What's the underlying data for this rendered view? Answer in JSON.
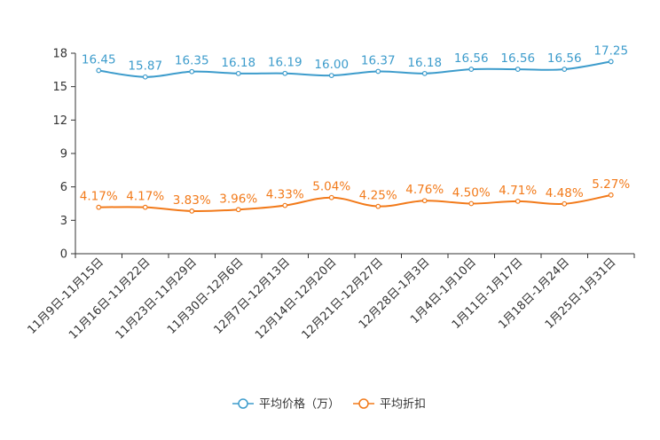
{
  "chart_data": {
    "type": "line",
    "categories": [
      "11月9日-11月15日",
      "11月16日-11月22日",
      "11月23日-11月29日",
      "11月30日-12月6日",
      "12月7日-12月13日",
      "12月14日-12月20日",
      "12月21日-12月27日",
      "12月28日-1月3日",
      "1月4日-1月10日",
      "1月11日-1月17日",
      "1月18日-1月24日",
      "1月25日-1月31日"
    ],
    "ylim": [
      0,
      18
    ],
    "yticks": [
      0,
      3,
      6,
      9,
      12,
      15,
      18
    ],
    "series": [
      {
        "name": "平均价格（万）",
        "color": "#3d9ccc",
        "values": [
          16.45,
          15.87,
          16.35,
          16.18,
          16.19,
          16.0,
          16.37,
          16.18,
          16.56,
          16.56,
          16.56,
          17.25
        ],
        "labels": [
          "16.45",
          "15.87",
          "16.35",
          "16.18",
          "16.19",
          "16.00",
          "16.37",
          "16.18",
          "16.56",
          "16.56",
          "16.56",
          "17.25"
        ]
      },
      {
        "name": "平均折扣",
        "color": "#f27a1a",
        "values": [
          4.17,
          4.17,
          3.83,
          3.96,
          4.33,
          5.04,
          4.25,
          4.76,
          4.5,
          4.71,
          4.48,
          5.27
        ],
        "labels": [
          "4.17%",
          "4.17%",
          "3.83%",
          "3.96%",
          "4.33%",
          "5.04%",
          "4.25%",
          "4.76%",
          "4.50%",
          "4.71%",
          "4.48%",
          "5.27%"
        ]
      }
    ],
    "legend_position": "bottom-center"
  }
}
